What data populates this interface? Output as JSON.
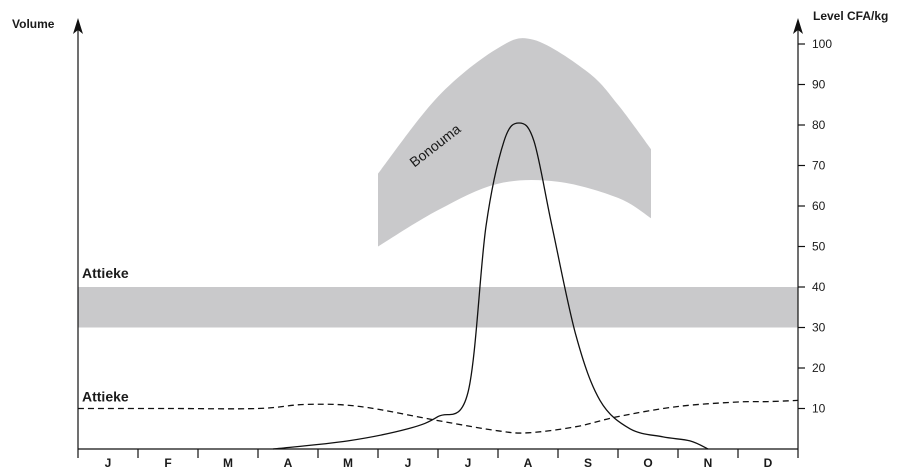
{
  "chart_data": {
    "type": "line",
    "y_left_label": "Volume",
    "y_right_label": "Level CFA/kg",
    "y_right_ticks": [
      10,
      20,
      30,
      40,
      50,
      60,
      70,
      80,
      90,
      100
    ],
    "ylim": [
      0,
      105
    ],
    "months": [
      "J",
      "F",
      "M",
      "A",
      "M",
      "J",
      "J",
      "A",
      "S",
      "O",
      "N",
      "D"
    ],
    "bands": [
      {
        "name": "Attieke",
        "label": "Attieke",
        "lower": 30,
        "upper": 40,
        "x_start": 0,
        "x_end": 12,
        "color": "#c9c9cb"
      },
      {
        "name": "Bonouma",
        "label": "Bonouma",
        "label_rotation_deg": -38,
        "color": "#c9c9cb",
        "upper": [
          [
            5.0,
            68
          ],
          [
            6.0,
            87
          ],
          [
            7.0,
            99
          ],
          [
            7.6,
            101
          ],
          [
            8.5,
            93
          ],
          [
            9.0,
            85
          ],
          [
            9.55,
            74
          ]
        ],
        "lower": [
          [
            9.55,
            57
          ],
          [
            9.0,
            62
          ],
          [
            8.0,
            66
          ],
          [
            7.0,
            65.5
          ],
          [
            6.0,
            59
          ],
          [
            5.0,
            50
          ]
        ]
      }
    ],
    "series": [
      {
        "name": "Bonouma volume",
        "style": "solid",
        "points": [
          [
            3.25,
            0
          ],
          [
            4.5,
            2
          ],
          [
            5.5,
            5
          ],
          [
            6.0,
            8
          ],
          [
            6.5,
            14
          ],
          [
            6.8,
            55
          ],
          [
            7.1,
            76
          ],
          [
            7.35,
            80.5
          ],
          [
            7.6,
            76
          ],
          [
            7.9,
            55
          ],
          [
            8.3,
            28
          ],
          [
            8.7,
            12
          ],
          [
            9.2,
            5
          ],
          [
            9.75,
            3
          ],
          [
            10.2,
            2
          ],
          [
            10.5,
            0
          ]
        ]
      },
      {
        "name": "Attieke volume",
        "label": "Attieke",
        "style": "dashed",
        "points": [
          [
            0,
            10
          ],
          [
            1.5,
            10
          ],
          [
            3.0,
            10
          ],
          [
            3.8,
            11
          ],
          [
            4.7,
            10.5
          ],
          [
            6.0,
            7
          ],
          [
            7.0,
            4.5
          ],
          [
            7.5,
            4
          ],
          [
            8.3,
            5.5
          ],
          [
            9.0,
            8
          ],
          [
            10.0,
            10.5
          ],
          [
            11.0,
            11.6
          ],
          [
            11.5,
            11.7
          ],
          [
            12,
            12
          ]
        ]
      }
    ]
  }
}
